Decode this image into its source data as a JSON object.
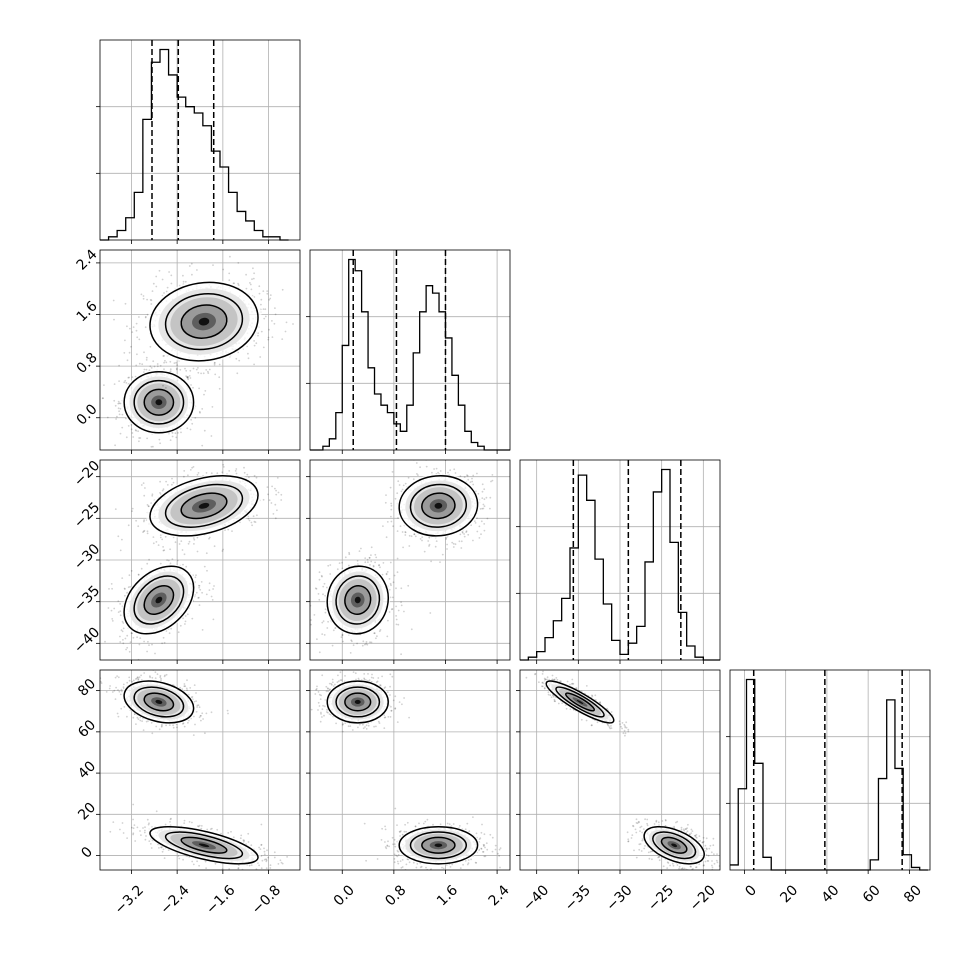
{
  "chart_data": {
    "type": "corner",
    "grid": true,
    "parameters": [
      {
        "range": [
          -3.75,
          -0.25
        ],
        "ticks": [
          -3.2,
          -2.4,
          -1.6,
          -0.8
        ],
        "tick_labels": [
          "−3.2",
          "−2.4",
          "−1.6",
          "−0.8"
        ]
      },
      {
        "range": [
          -0.5,
          2.6
        ],
        "ticks": [
          0.0,
          0.8,
          1.6,
          2.4
        ],
        "tick_labels": [
          "0.0",
          "0.8",
          "1.6",
          "2.4"
        ]
      },
      {
        "range": [
          -42,
          -18
        ],
        "ticks": [
          -40,
          -35,
          -30,
          -25,
          -20
        ],
        "tick_labels": [
          "−40",
          "−35",
          "−30",
          "−25",
          "−20"
        ]
      },
      {
        "range": [
          -7,
          90
        ],
        "ticks": [
          0,
          20,
          40,
          60,
          80
        ],
        "tick_labels": [
          "0",
          "20",
          "40",
          "60",
          "80"
        ]
      }
    ],
    "marginals": [
      {
        "edges": [
          -3.75,
          -3.6,
          -3.45,
          -3.3,
          -3.15,
          -3.0,
          -2.85,
          -2.7,
          -2.55,
          -2.4,
          -2.25,
          -2.1,
          -1.95,
          -1.8,
          -1.65,
          -1.5,
          -1.35,
          -1.2,
          -1.05,
          -0.9,
          -0.75,
          -0.6,
          -0.45
        ],
        "counts": [
          0,
          1,
          3,
          7,
          15,
          38,
          56,
          60,
          52,
          45,
          42,
          40,
          36,
          28,
          23,
          15,
          9,
          6,
          3,
          1,
          1,
          0
        ],
        "quantiles": [
          -2.84,
          -2.38,
          -1.76
        ]
      },
      {
        "edges": [
          -0.5,
          -0.4,
          -0.3,
          -0.2,
          -0.1,
          0.0,
          0.1,
          0.2,
          0.3,
          0.4,
          0.5,
          0.6,
          0.7,
          0.8,
          0.9,
          1.0,
          1.1,
          1.2,
          1.3,
          1.4,
          1.5,
          1.6,
          1.7,
          1.8,
          1.9,
          2.0,
          2.1,
          2.2,
          2.3,
          2.4,
          2.5,
          2.6
        ],
        "counts": [
          0,
          0,
          1,
          3,
          10,
          28,
          51,
          48,
          37,
          22,
          15,
          12,
          10,
          7,
          5,
          12,
          26,
          37,
          44,
          42,
          37,
          30,
          20,
          12,
          5,
          2,
          1,
          0,
          0,
          0,
          0
        ],
        "quantiles": [
          0.17,
          0.84,
          1.6
        ]
      },
      {
        "edges": [
          -42,
          -41,
          -40,
          -39,
          -38,
          -37,
          -36,
          -35,
          -34,
          -33,
          -32,
          -31,
          -30,
          -29,
          -28,
          -27,
          -26,
          -25,
          -24,
          -23,
          -22,
          -21,
          -20,
          -19,
          -18
        ],
        "counts": [
          0,
          1,
          3,
          8,
          14,
          22,
          40,
          66,
          57,
          36,
          20,
          7,
          2,
          6,
          12,
          35,
          60,
          68,
          42,
          17,
          5,
          1,
          0,
          0
        ],
        "quantiles": [
          -35.6,
          -29.0,
          -22.7
        ]
      },
      {
        "edges": [
          -7,
          -3,
          1,
          5,
          9,
          13,
          17,
          21,
          25,
          29,
          33,
          37,
          41,
          45,
          49,
          53,
          57,
          61,
          65,
          69,
          73,
          77,
          81,
          85,
          89
        ],
        "counts": [
          2,
          32,
          75,
          42,
          5,
          0,
          0,
          0,
          0,
          0,
          0,
          0,
          0,
          0,
          0,
          0,
          0,
          4,
          36,
          67,
          40,
          6,
          1,
          0
        ],
        "quantiles": [
          4.5,
          39.0,
          76.5
        ]
      }
    ],
    "modes": [
      {
        "center": [
          -2.72,
          0.24,
          -34.8,
          74.5
        ],
        "sigma": [
          0.27,
          0.21,
          1.8,
          4.5
        ],
        "weight": 0.46
      },
      {
        "center": [
          -1.93,
          1.49,
          -23.5,
          5.0
        ],
        "sigma": [
          0.42,
          0.27,
          1.6,
          4.0
        ],
        "weight": 0.54
      }
    ],
    "pairs": [
      {
        "row": 1,
        "col": 0,
        "rho": [
          0.0,
          0.1
        ]
      },
      {
        "row": 2,
        "col": 0,
        "rho": [
          0.35,
          0.35
        ]
      },
      {
        "row": 2,
        "col": 1,
        "rho": [
          0.05,
          0.05
        ]
      },
      {
        "row": 3,
        "col": 0,
        "rho": [
          -0.3,
          -0.65
        ]
      },
      {
        "row": 3,
        "col": 1,
        "rho": [
          0.0,
          0.0
        ]
      },
      {
        "row": 3,
        "col": 2,
        "rho": [
          -0.88,
          -0.5
        ]
      }
    ]
  }
}
